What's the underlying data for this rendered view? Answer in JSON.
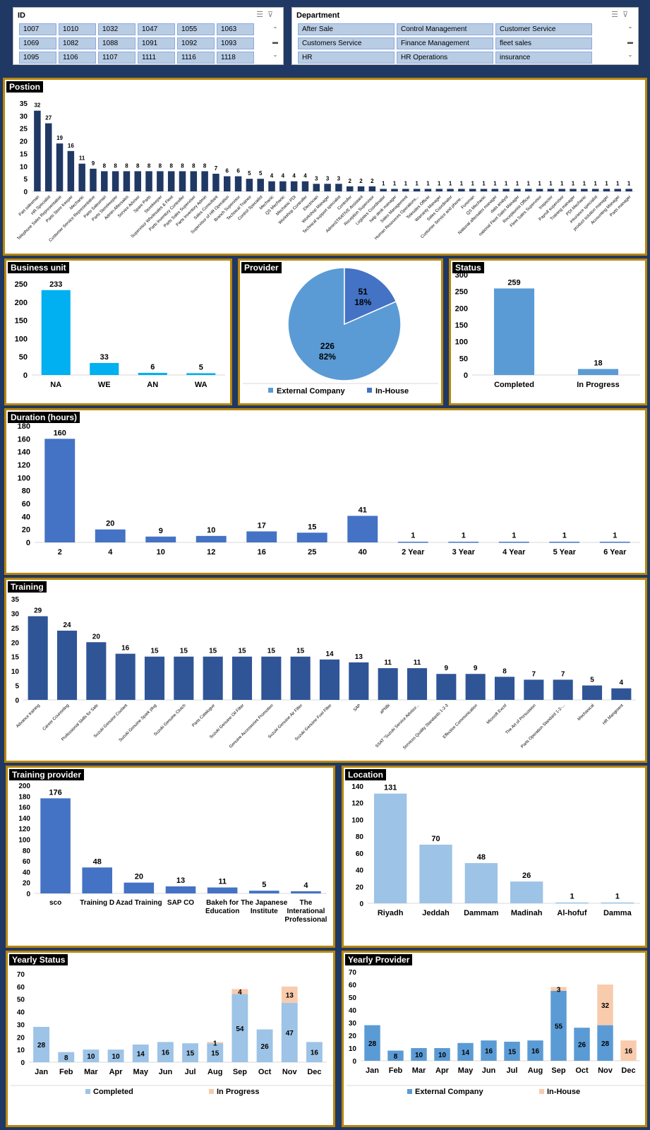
{
  "slicers": {
    "id": {
      "title": "ID",
      "items": [
        "1007",
        "1010",
        "1032",
        "1047",
        "1055",
        "1063",
        "1069",
        "1082",
        "1088",
        "1091",
        "1092",
        "1093",
        "1095",
        "1106",
        "1107",
        "1111",
        "1116",
        "1118"
      ]
    },
    "department": {
      "title": "Department",
      "items": [
        "After Sale",
        "Control Management",
        "Customer Service",
        "Customers Service",
        "Finance Management",
        "fleet sales",
        "HR",
        "HR Operations",
        "insurance"
      ]
    }
  },
  "colors": {
    "dark_blue": "#1f3864",
    "navy_bar": "#203864",
    "cyan": "#00b0f0",
    "mid_blue": "#4472c4",
    "light_blue": "#5b9bd5",
    "pale_blue": "#9dc3e6",
    "peach": "#f8cbad",
    "gold": "#b8860b"
  },
  "chart_data": [
    {
      "key": "position",
      "type": "bar",
      "title": "Postion",
      "ylim": [
        0,
        35
      ],
      "yticks": [
        0,
        5,
        10,
        15,
        20,
        25,
        30,
        35
      ],
      "categories": [
        "Part salesman",
        "HR Specialist",
        "Telephone Sales Representative",
        "Parts Store Keeper",
        "Mechanic",
        "Customer Service Representative",
        "Parts Salesman",
        "Parts Storekeeper",
        "Admin-Aftersales",
        "Service Advisor",
        "Spare Parts",
        "Storekeeper",
        "Supervisor Wholesales & Fleet",
        "Parts Inventory Controller",
        "Parts Sales Supervisor",
        "Parts Inventory Admin",
        "Sales Consultant",
        "Supervisor of HR Operation",
        "Branch Supervisor",
        "Technical Trainee",
        "Control Specialist",
        "Mechanic",
        "QS Mechanic",
        "Mechanic PDI",
        "Workshop Controller",
        "Electrician",
        "Workshop Manager",
        "Technical support specialist",
        "Controller",
        "AdminSTRATIVE Assistant",
        "Reception Supervisor",
        "Logistics Coordinator",
        "help desk manager",
        "Sales Management",
        "Human Resources Operations...",
        "Telesales Officer",
        "Warranty Manager",
        "Sales Coordinator",
        "Customer Service and phone...",
        "Foreman",
        "QS Mechanic",
        "National aftersales manager",
        "data analyst",
        "national Fleet Sales Manager",
        "Receptionist Officer",
        "Fleet Sales Supervisor",
        "Inspector",
        "Payroll supervisor",
        "Training manager",
        "PDI Mechanic",
        "insurance specialist",
        "product solution manager",
        "Accounting Manager",
        "Parts manager"
      ],
      "values": [
        32,
        27,
        19,
        16,
        11,
        9,
        8,
        8,
        8,
        8,
        8,
        8,
        8,
        8,
        8,
        8,
        7,
        6,
        6,
        5,
        5,
        4,
        4,
        4,
        4,
        3,
        3,
        3,
        2,
        2,
        2,
        1,
        1,
        1,
        1,
        1,
        1,
        1,
        1,
        1,
        1,
        1,
        1,
        1,
        1,
        1,
        1,
        1,
        1,
        1,
        1,
        1,
        1,
        1
      ]
    },
    {
      "key": "business_unit",
      "type": "bar",
      "title": "Business unit",
      "ylim": [
        0,
        250
      ],
      "yticks": [
        0,
        50,
        100,
        150,
        200,
        250
      ],
      "categories": [
        "NA",
        "WE",
        "AN",
        "WA"
      ],
      "values": [
        233,
        33,
        6,
        5
      ]
    },
    {
      "key": "provider",
      "type": "pie",
      "title": "Provider",
      "categories": [
        "External Company",
        "In-House"
      ],
      "values": [
        226,
        51
      ],
      "percent_labels": [
        "82%",
        "18%"
      ]
    },
    {
      "key": "status",
      "type": "bar",
      "title": "Status",
      "ylim": [
        0,
        300
      ],
      "yticks": [
        0,
        50,
        100,
        150,
        200,
        250,
        300
      ],
      "categories": [
        "Completed",
        "In Progress"
      ],
      "values": [
        259,
        18
      ]
    },
    {
      "key": "duration",
      "type": "bar",
      "title": "Duration (hours)",
      "ylim": [
        0,
        180
      ],
      "yticks": [
        0,
        20,
        40,
        60,
        80,
        100,
        120,
        140,
        160,
        180
      ],
      "categories": [
        "2",
        "4",
        "10",
        "12",
        "16",
        "25",
        "40",
        "2 Year",
        "3 Year",
        "4 Year",
        "5 Year",
        "6 Year"
      ],
      "values": [
        160,
        20,
        9,
        10,
        17,
        15,
        41,
        1,
        1,
        1,
        1,
        1
      ]
    },
    {
      "key": "training",
      "type": "bar",
      "title": "Training",
      "ylim": [
        0,
        35
      ],
      "yticks": [
        0,
        5,
        10,
        15,
        20,
        25,
        30,
        35
      ],
      "categories": [
        "Advance training",
        "Career Counseling",
        "Professional Skills for Sale",
        "Suzuki Genuine Coolant",
        "Suzuki Genuine Spark plug",
        "Suzuki Genuine Clutch",
        "Parts Catalogue",
        "Suzuki Genuine Oil Filter",
        "Genuine Accessories Promotion",
        "Suzuki Genuine Air Filter",
        "Suzuki Genuine Fuel Filter",
        "SAP",
        "aPNBi",
        "SSAT \"Suzuki Service Advisor...",
        "Services Quality Standards 1-2-3",
        "Effective Communication",
        "Microsft Excel",
        "The Art of Persuasion",
        "Parts Operation Standard 1-2-...",
        "Mechanical",
        "HR Mangment"
      ],
      "values": [
        29,
        24,
        20,
        16,
        15,
        15,
        15,
        15,
        15,
        15,
        14,
        13,
        11,
        11,
        9,
        9,
        8,
        7,
        7,
        5,
        4
      ]
    },
    {
      "key": "training_provider",
      "type": "bar",
      "title": "Training provider",
      "ylim": [
        0,
        200
      ],
      "yticks": [
        0,
        20,
        40,
        60,
        80,
        100,
        120,
        140,
        160,
        180,
        200
      ],
      "categories": [
        "sco",
        "Training D",
        "Azad Training",
        "SAP CO",
        "Bakeh for Education",
        "The Japanese Institute",
        "The Interational Professional"
      ],
      "values": [
        176,
        48,
        20,
        13,
        11,
        5,
        4
      ]
    },
    {
      "key": "location",
      "type": "bar",
      "title": "Location",
      "ylim": [
        0,
        140
      ],
      "yticks": [
        0,
        20,
        40,
        60,
        80,
        100,
        120,
        140
      ],
      "categories": [
        "Riyadh",
        "Jeddah",
        "Dammam",
        "Madinah",
        "Al-hofuf",
        "Damma"
      ],
      "values": [
        131,
        70,
        48,
        26,
        1,
        1
      ]
    },
    {
      "key": "yearly_status",
      "type": "bar",
      "stacked": true,
      "title": "Yearly Status",
      "ylim": [
        0,
        70
      ],
      "yticks": [
        0,
        10,
        20,
        30,
        40,
        50,
        60,
        70
      ],
      "categories": [
        "Jan",
        "Feb",
        "Mar",
        "Apr",
        "May",
        "Jun",
        "Jul",
        "Aug",
        "Sep",
        "Oct",
        "Nov",
        "Dec"
      ],
      "series": [
        {
          "name": "Completed",
          "values": [
            28,
            8,
            10,
            10,
            14,
            16,
            15,
            15,
            54,
            26,
            47,
            16
          ]
        },
        {
          "name": "In Progress",
          "values": [
            0,
            0,
            0,
            0,
            0,
            0,
            0,
            1,
            4,
            0,
            13,
            0
          ]
        }
      ]
    },
    {
      "key": "yearly_provider",
      "type": "bar",
      "stacked": true,
      "title": "Yearly Provider",
      "ylim": [
        0,
        70
      ],
      "yticks": [
        0,
        10,
        20,
        30,
        40,
        50,
        60,
        70
      ],
      "categories": [
        "Jan",
        "Feb",
        "Mar",
        "Apr",
        "May",
        "Jun",
        "Jul",
        "Aug",
        "Sep",
        "Oct",
        "Nov",
        "Dec"
      ],
      "series": [
        {
          "name": "External Company",
          "values": [
            28,
            8,
            10,
            10,
            14,
            16,
            15,
            16,
            55,
            26,
            28,
            0
          ]
        },
        {
          "name": "In-House",
          "values": [
            0,
            0,
            0,
            0,
            0,
            0,
            0,
            0,
            3,
            0,
            32,
            16
          ]
        }
      ]
    }
  ]
}
